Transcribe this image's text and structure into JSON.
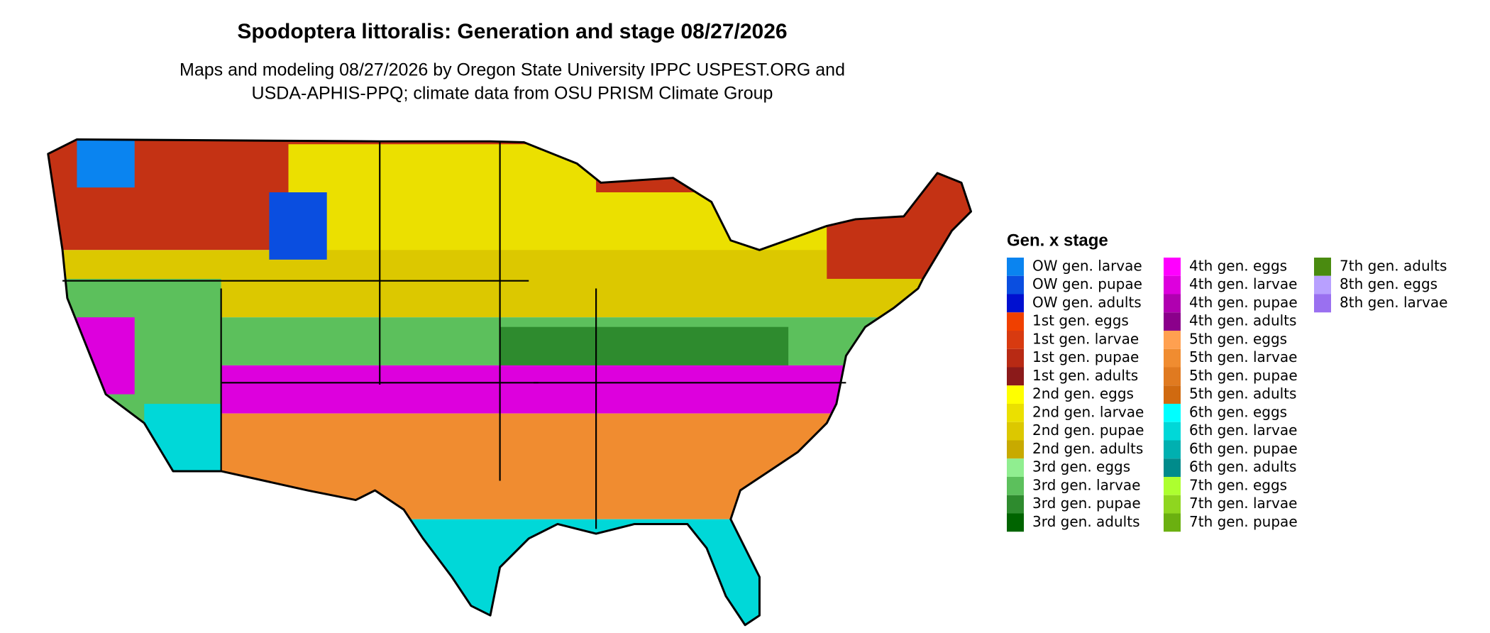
{
  "title": "Spodoptera littoralis: Generation and stage 08/27/2026",
  "subtitle": [
    "Maps and modeling 08/27/2026 by Oregon State University IPPC USPEST.ORG and",
    "USDA-APHIS-PPQ; climate data from OSU PRISM Climate Group"
  ],
  "legend": {
    "title": "Gen. x stage",
    "items": [
      {
        "label": "OW gen. larvae",
        "color": "#0a84f0"
      },
      {
        "label": "OW gen. pupae",
        "color": "#0a4ee0"
      },
      {
        "label": "OW gen. adults",
        "color": "#0010d0"
      },
      {
        "label": "1st gen. eggs",
        "color": "#f04000"
      },
      {
        "label": "1st gen. larvae",
        "color": "#d83a10"
      },
      {
        "label": "1st gen. pupae",
        "color": "#b82a14"
      },
      {
        "label": "1st gen. adults",
        "color": "#8b1a1a"
      },
      {
        "label": "2nd gen. eggs",
        "color": "#ffff00"
      },
      {
        "label": "2nd gen. larvae",
        "color": "#ebe000"
      },
      {
        "label": "2nd gen. pupae",
        "color": "#dcc800"
      },
      {
        "label": "2nd gen. adults",
        "color": "#c8aa00"
      },
      {
        "label": "3rd gen. eggs",
        "color": "#90ee90"
      },
      {
        "label": "3rd gen. larvae",
        "color": "#5cc05c"
      },
      {
        "label": "3rd gen. pupae",
        "color": "#2e8b2e"
      },
      {
        "label": "3rd gen. adults",
        "color": "#006400"
      },
      {
        "label": "4th gen. eggs",
        "color": "#ff00ff"
      },
      {
        "label": "4th gen. larvae",
        "color": "#dd00dd"
      },
      {
        "label": "4th gen. pupae",
        "color": "#b000b0"
      },
      {
        "label": "4th gen. adults",
        "color": "#8b008b"
      },
      {
        "label": "5th gen. eggs",
        "color": "#ffa050"
      },
      {
        "label": "5th gen. larvae",
        "color": "#f08c30"
      },
      {
        "label": "5th gen. pupae",
        "color": "#e07a20"
      },
      {
        "label": "5th gen. adults",
        "color": "#d06a10"
      },
      {
        "label": "6th gen. eggs",
        "color": "#00ffff"
      },
      {
        "label": "6th gen. larvae",
        "color": "#00d8d8"
      },
      {
        "label": "6th gen. pupae",
        "color": "#00b0b0"
      },
      {
        "label": "6th gen. adults",
        "color": "#008b8b"
      },
      {
        "label": "7th gen. eggs",
        "color": "#adff2f"
      },
      {
        "label": "7th gen. larvae",
        "color": "#8fd61f"
      },
      {
        "label": "7th gen. pupae",
        "color": "#6bb010"
      },
      {
        "label": "7th gen. adults",
        "color": "#4a8b10"
      },
      {
        "label": "8th gen. eggs",
        "color": "#b8a0ff"
      },
      {
        "label": "8th gen. larvae",
        "color": "#9a70f0"
      }
    ]
  }
}
